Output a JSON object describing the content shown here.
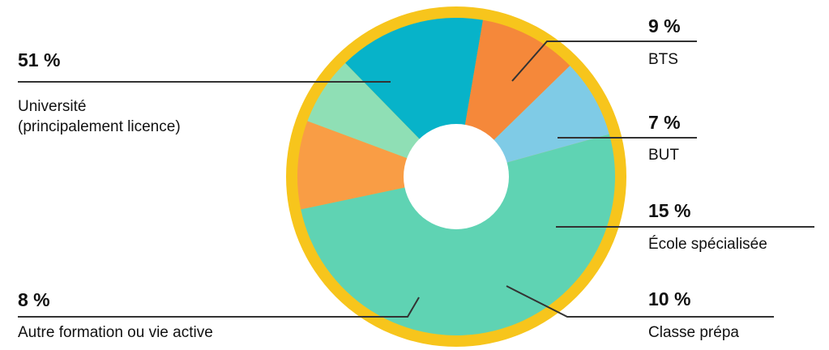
{
  "colors": {
    "ring": "#f7c51c",
    "leader": "#333333",
    "background": "#ffffff"
  },
  "chart_data": {
    "type": "pie",
    "variant": "donut",
    "slices": [
      {
        "value": 51,
        "pct_label": "51 %",
        "label_lines": [
          "Université",
          "(principalement licence)"
        ],
        "color": "#5fd3b3"
      },
      {
        "value": 9,
        "pct_label": "9 %",
        "label_lines": [
          "BTS"
        ],
        "color": "#f99d45"
      },
      {
        "value": 7,
        "pct_label": "7 %",
        "label_lines": [
          "BUT"
        ],
        "color": "#8fdfb5"
      },
      {
        "value": 15,
        "pct_label": "15 %",
        "label_lines": [
          "École spécialisée"
        ],
        "color": "#07b3c9"
      },
      {
        "value": 10,
        "pct_label": "10 %",
        "label_lines": [
          "Classe prépa"
        ],
        "color": "#f5883a"
      },
      {
        "value": 8,
        "pct_label": "8 %",
        "label_lines": [
          "Autre formation ou vie active"
        ],
        "color": "#7fcbe6"
      }
    ]
  }
}
